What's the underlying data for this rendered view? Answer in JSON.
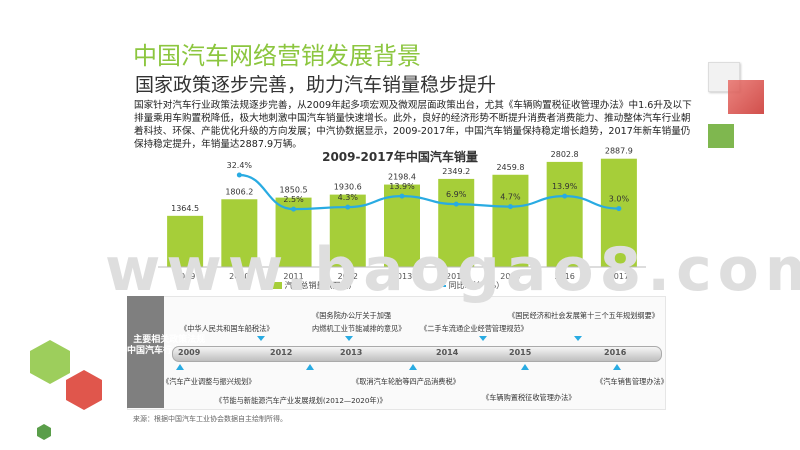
{
  "header": {
    "title": "中国汽车网络营销发展背景",
    "subtitle": "国家政策逐步完善，助力汽车销量稳步提升"
  },
  "intro": {
    "text": "国家针对汽车行业政策法规逐步完善，从2009年起多项宏观及微观层面政策出台，尤其《车辆购置税征收管理办法》中1.6升及以下排量乘用车购置税降低，极大地刺激中国汽车销量快速增长。此外，良好的经济形势不断提升消费者消费能力、推动整体汽车行业朝着科技、环保、产能优化升级的方向发展；中汽协数据显示，2009-2017年，中国汽车销量保持稳定增长趋势，2017年新车销量仍保持稳定提升，年销量达2887.9万辆。"
  },
  "chart_data": {
    "type": "bar",
    "title": "2009-2017年中国汽车销量",
    "categories": [
      "2009",
      "2010",
      "2011",
      "2012",
      "2013",
      "2014",
      "2015",
      "2016",
      "2017"
    ],
    "series": [
      {
        "name": "汽车总销量（万辆）",
        "kind": "bar",
        "color": "#a6ce39",
        "values": [
          1364.5,
          1806.2,
          1850.5,
          1930.6,
          2198.4,
          2349.2,
          2459.8,
          2802.8,
          2887.9
        ]
      },
      {
        "name": "同比增长（%）",
        "kind": "line",
        "color": "#29abe2",
        "values": [
          null,
          32.4,
          2.5,
          4.3,
          13.9,
          6.9,
          4.7,
          13.9,
          3.0
        ],
        "labels": [
          "",
          "32.4%",
          "2.5%",
          "4.3%",
          "13.9%",
          "6.9%",
          "4.7%",
          "13.9%",
          "3.0%"
        ]
      }
    ],
    "bar_labels": [
      "1364.5",
      "1806.2",
      "1850.5",
      "1930.6",
      "2198.4",
      "2349.2",
      "2459.8",
      "2802.8",
      "2887.9"
    ],
    "ylim": [
      0,
      4000
    ],
    "y2lim": [
      0,
      35
    ],
    "grid": false,
    "legend_position": "bottom"
  },
  "timeline": {
    "side_label": "主中\n要国\n相汽\n关车\n政行\n策业\n法\n规",
    "side_label_text": "主要相关政策法规\n中国汽车行业",
    "years": [
      "2009",
      "2012",
      "2013",
      "2014",
      "2015",
      "2016"
    ],
    "policies_top": [
      "《中华人民共和国车船税法》",
      "《国务院办公厅关于加强",
      "内燃机工业节能减排的意见》",
      "《二手车流通企业经营管理规范》",
      "《国民经济和社会发展第十三个五年规划纲要》"
    ],
    "policies_bottom": [
      "《汽车产业调整与振兴规划》",
      "《节能与新能源汽车产业发展规划(2012—2020年)》",
      "《取消汽车轮胎等四产品消费税》",
      "《车辆购置税征收管理办法》",
      "《汽车销售管理办法》"
    ]
  },
  "watermark": "www.baogao8.com",
  "footer": {
    "source": "来源：根据中国汽车工业协会数据自主绘制所得。"
  },
  "colors": {
    "accent_green": "#8cc63f",
    "bar_green": "#a6ce39",
    "line_blue": "#29abe2",
    "deco_red": "#e0564c"
  }
}
